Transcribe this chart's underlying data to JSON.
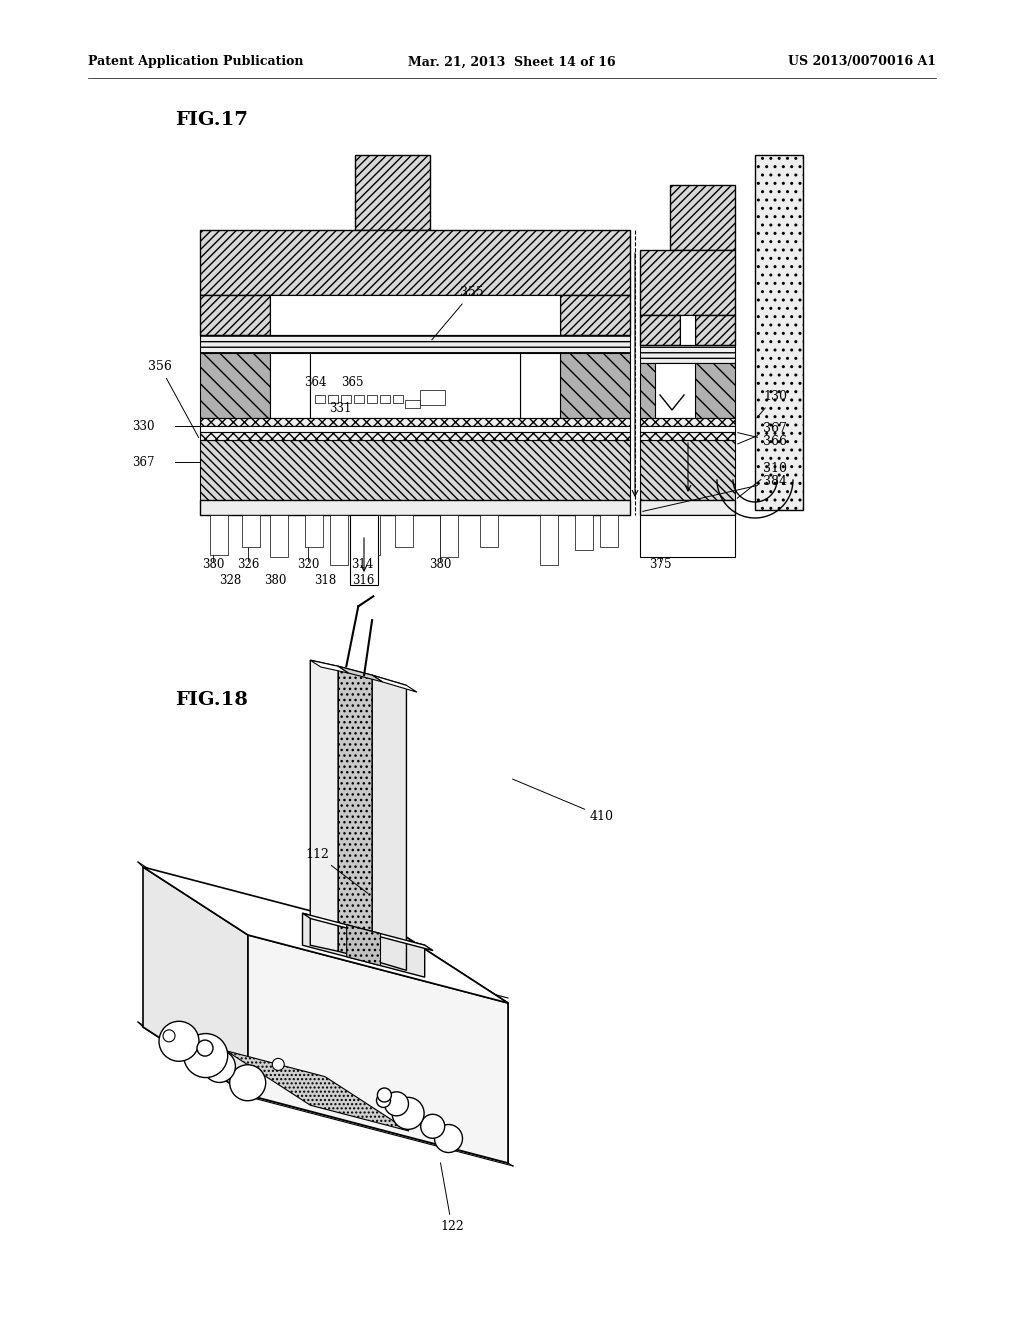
{
  "bg_color": "#ffffff",
  "header_left": "Patent Application Publication",
  "header_mid": "Mar. 21, 2013  Sheet 14 of 16",
  "header_right": "US 2013/0070016 A1",
  "fig17_label": "FIG.17",
  "fig18_label": "FIG.18",
  "hatch_dense": "////",
  "hatch_light": "///",
  "hatch_horiz": "---",
  "hatch_dot": "...",
  "gray_dark": "#888888",
  "gray_med": "#b0b0b0",
  "gray_light": "#d8d8d8",
  "gray_vlight": "#eeeeee"
}
